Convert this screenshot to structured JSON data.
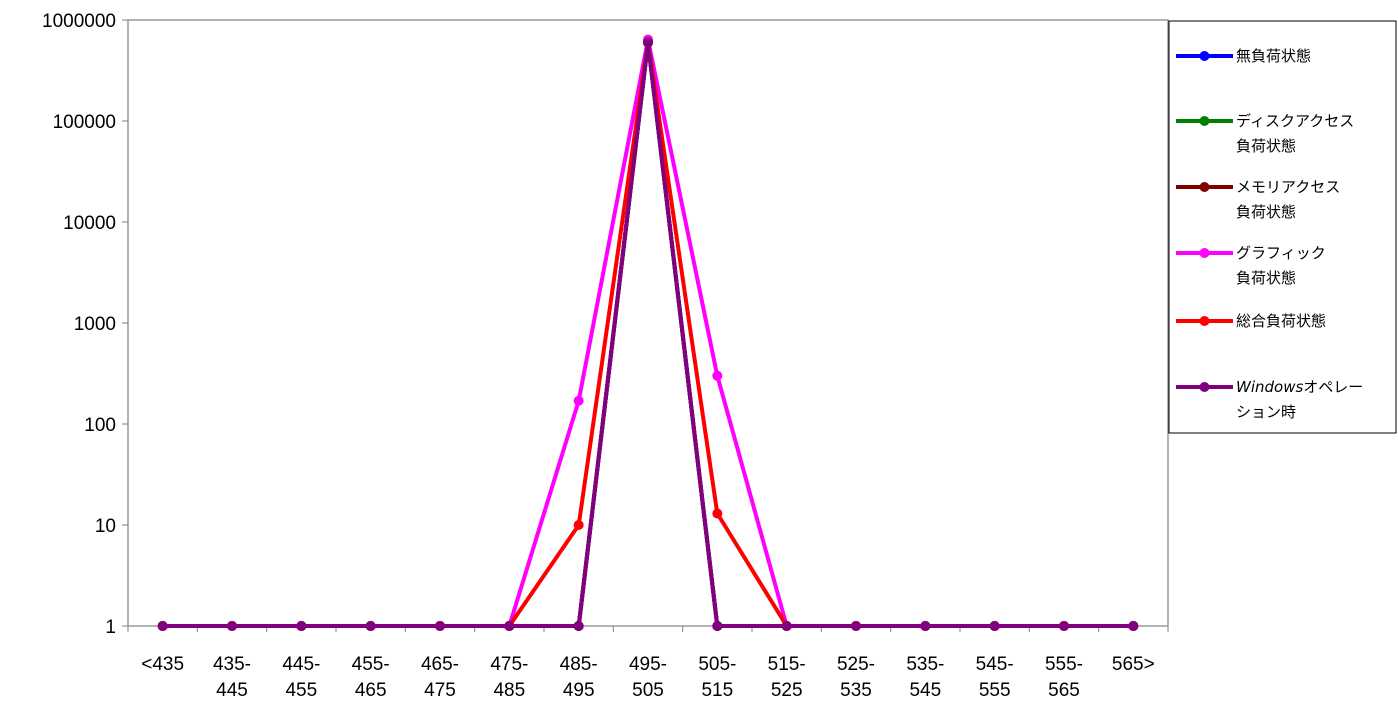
{
  "chart_data": {
    "type": "line",
    "title": "",
    "xlabel": "",
    "ylabel": "",
    "y_scale": "log",
    "ylim": [
      1,
      1000000
    ],
    "y_ticks": [
      "1",
      "10",
      "100",
      "1000",
      "10000",
      "100000",
      "1000000"
    ],
    "y_tick_values": [
      1,
      10,
      100,
      1000,
      10000,
      100000,
      1000000
    ],
    "grid": false,
    "legend_position": "right",
    "categories": [
      [
        "<435"
      ],
      [
        "435-",
        "445"
      ],
      [
        "445-",
        "455"
      ],
      [
        "455-",
        "465"
      ],
      [
        "465-",
        "475"
      ],
      [
        "475-",
        "485"
      ],
      [
        "485-",
        "495"
      ],
      [
        "495-",
        "505"
      ],
      [
        "505-",
        "515"
      ],
      [
        "515-",
        "525"
      ],
      [
        "525-",
        "535"
      ],
      [
        "535-",
        "545"
      ],
      [
        "545-",
        "555"
      ],
      [
        "555-",
        "565"
      ],
      [
        "565>"
      ]
    ],
    "series": [
      {
        "name": [
          "無負荷状態"
        ],
        "color": "#0000ff",
        "values": [
          1,
          1,
          1,
          1,
          1,
          1,
          1,
          600000,
          1,
          1,
          1,
          1,
          1,
          1,
          1
        ]
      },
      {
        "name": [
          "ディスクアクセス",
          "負荷状態"
        ],
        "color": "#008000",
        "values": [
          1,
          1,
          1,
          1,
          1,
          1,
          1,
          600000,
          1,
          1,
          1,
          1,
          1,
          1,
          1
        ]
      },
      {
        "name": [
          "メモリアクセス",
          "負荷状態"
        ],
        "color": "#800000",
        "values": [
          1,
          1,
          1,
          1,
          1,
          1,
          1,
          600000,
          1,
          1,
          1,
          1,
          1,
          1,
          1
        ]
      },
      {
        "name": [
          "グラフィック",
          "負荷状態"
        ],
        "color": "#ff00ff",
        "values": [
          1,
          1,
          1,
          1,
          1,
          1,
          170,
          640000,
          300,
          1,
          1,
          1,
          1,
          1,
          1
        ]
      },
      {
        "name": [
          "総合負荷状態"
        ],
        "color": "#ff0000",
        "values": [
          1,
          1,
          1,
          1,
          1,
          1,
          10,
          600000,
          13,
          1,
          1,
          1,
          1,
          1,
          1
        ]
      },
      {
        "name": [
          "Windowsオペレー",
          "ション時"
        ],
        "color": "#800080",
        "values": [
          1,
          1,
          1,
          1,
          1,
          1,
          1,
          600000,
          1,
          1,
          1,
          1,
          1,
          1,
          1
        ]
      }
    ]
  }
}
